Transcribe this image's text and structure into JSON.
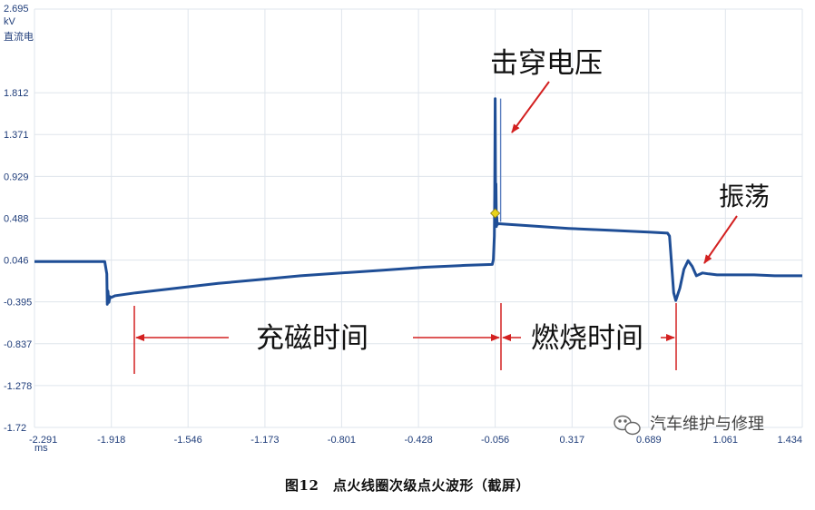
{
  "chart_data": {
    "type": "line",
    "title": "",
    "y_unit": "kV",
    "y_unit_note": "直流电",
    "x_unit": "ms",
    "y_ticks": [
      "2.695",
      "1.812",
      "1.371",
      "0.929",
      "0.488",
      "0.046",
      "-0.395",
      "-0.837",
      "-1.278",
      "-1.72"
    ],
    "x_ticks": [
      "-2.291",
      "-1.918",
      "-1.546",
      "-1.173",
      "-0.801",
      "-0.428",
      "-0.056",
      "0.317",
      "0.689",
      "1.061",
      "1.434"
    ],
    "xlim": [
      -2.291,
      1.434
    ],
    "ylim": [
      -1.72,
      2.695
    ],
    "grid": true,
    "series": [
      {
        "color": "#1f4e96",
        "x": [
          -2.291,
          -1.95,
          -1.94,
          -1.938,
          -1.935,
          -1.93,
          -1.925,
          -1.92,
          -1.9,
          -1.8,
          -1.6,
          -1.4,
          -1.2,
          -1.0,
          -0.8,
          -0.6,
          -0.4,
          -0.2,
          -0.07,
          -0.065,
          -0.06,
          -0.058,
          -0.056,
          -0.054,
          -0.052,
          -0.05,
          -0.048,
          -0.046,
          -0.04,
          0.1,
          0.3,
          0.5,
          0.7,
          0.78,
          0.79,
          0.8,
          0.81,
          0.82,
          0.84,
          0.86,
          0.88,
          0.9,
          0.92,
          0.95,
          0.98,
          1.02,
          1.1,
          1.2,
          1.3,
          1.434
        ],
        "y": [
          0.03,
          0.03,
          -0.1,
          -0.42,
          -0.28,
          -0.4,
          -0.34,
          -0.35,
          -0.33,
          -0.3,
          -0.25,
          -0.2,
          -0.16,
          -0.12,
          -0.09,
          -0.06,
          -0.03,
          -0.01,
          0.0,
          0.05,
          0.3,
          0.75,
          1.75,
          0.55,
          0.85,
          0.4,
          0.5,
          0.42,
          0.43,
          0.41,
          0.38,
          0.36,
          0.34,
          0.33,
          0.3,
          0.0,
          -0.3,
          -0.38,
          -0.25,
          -0.05,
          0.04,
          -0.02,
          -0.12,
          -0.09,
          -0.1,
          -0.11,
          -0.11,
          -0.11,
          -0.12,
          -0.12
        ]
      }
    ],
    "marker": {
      "x": -0.056,
      "y": 0.54,
      "color": "#e8d21a"
    },
    "annotations": {
      "breakdown_voltage": "击穿电压",
      "oscillation": "振荡",
      "dwell_time": "充磁时间",
      "burn_time": "燃烧时间"
    }
  },
  "watermark": "汽车维护与修理",
  "caption": "图12　点火线圈次级点火波形（截屏）"
}
